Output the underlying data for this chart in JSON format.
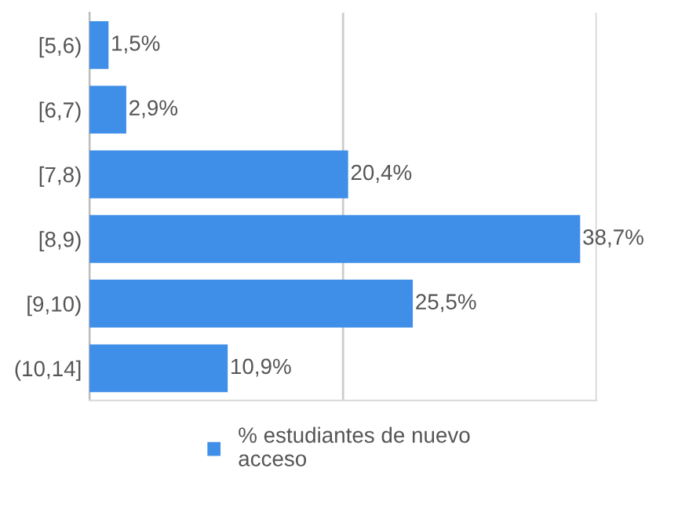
{
  "chart_data": {
    "type": "bar",
    "orientation": "horizontal",
    "categories": [
      "[5,6)",
      "[6,7)",
      "[7,8)",
      "[8,9)",
      "[9,10)",
      "(10,14]"
    ],
    "series": [
      {
        "name": "% estudiantes de nuevo\nacceso",
        "color": "#3f8ee8",
        "values": [
          1.5,
          2.9,
          20.4,
          38.7,
          25.5,
          10.9
        ],
        "value_labels": [
          "1,5%",
          "2,9%",
          "20,4%",
          "38,7%",
          "25,5%",
          "10,9%"
        ]
      }
    ],
    "xlim": [
      0,
      40
    ],
    "xticks": [
      {
        "value": 0,
        "label": null
      },
      {
        "value": 20,
        "label": null
      },
      {
        "value": 40,
        "label": null
      }
    ],
    "tick_labels": "y",
    "grid": "x",
    "legend": "bottom"
  }
}
